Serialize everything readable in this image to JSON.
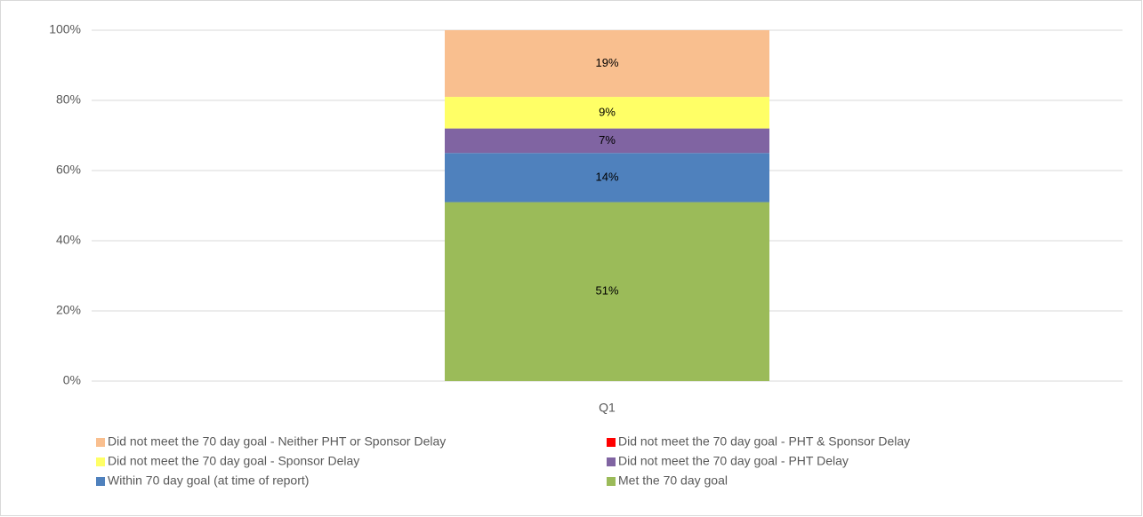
{
  "chart_data": {
    "type": "stacked_bar",
    "categories": [
      "Q1"
    ],
    "series": [
      {
        "name": "Met the 70 day goal",
        "color": "#9bbb59",
        "values": [
          51
        ],
        "value_labels": [
          "51%"
        ]
      },
      {
        "name": "Within 70 day goal (at time of report)",
        "color": "#4f81bd",
        "values": [
          14
        ],
        "value_labels": [
          "14%"
        ]
      },
      {
        "name": "Did not meet the 70 day goal - PHT Delay",
        "color": "#8064a2",
        "values": [
          7
        ],
        "value_labels": [
          "7%"
        ]
      },
      {
        "name": "Did not meet the 70 day goal - Sponsor Delay",
        "color": "#ffff66",
        "values": [
          9
        ],
        "value_labels": [
          "9%"
        ]
      },
      {
        "name": "Did not meet the 70 day goal - PHT & Sponsor Delay",
        "color": "#ff0000",
        "values": [
          0
        ],
        "value_labels": [
          "0%"
        ]
      },
      {
        "name": "Did not meet the 70 day goal - Neither PHT or Sponsor Delay",
        "color": "#f9bf8f",
        "values": [
          19
        ],
        "value_labels": [
          "19%"
        ]
      }
    ],
    "ylim": [
      0,
      100
    ],
    "yticks": [
      {
        "value": 0,
        "label": "0%"
      },
      {
        "value": 20,
        "label": "20%"
      },
      {
        "value": 40,
        "label": "40%"
      },
      {
        "value": 60,
        "label": "60%"
      },
      {
        "value": 80,
        "label": "80%"
      },
      {
        "value": 100,
        "label": "100%"
      }
    ],
    "grid": true,
    "legend": "bottom"
  }
}
